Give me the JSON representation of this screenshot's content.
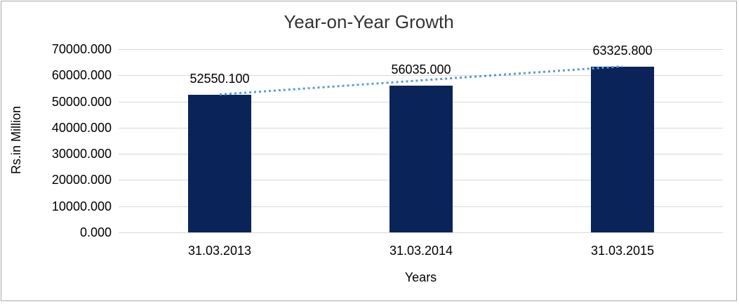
{
  "chart_data": {
    "type": "bar",
    "title": "Year-on-Year Growth",
    "xlabel": "Years",
    "ylabel": "Rs.in Million",
    "categories": [
      "31.03.2013",
      "31.03.2014",
      "31.03.2015"
    ],
    "series": [
      {
        "name": "Year-on-Year Growth",
        "values": [
          52550.1,
          56035.0,
          63325.8
        ],
        "data_labels": [
          "52550.100",
          "56035.000",
          "63325.800"
        ]
      }
    ],
    "ylim": [
      0,
      70000
    ],
    "ytick_step": 10000,
    "ytick_labels": [
      "0.000",
      "10000.000",
      "20000.000",
      "30000.000",
      "40000.000",
      "50000.000",
      "60000.000",
      "70000.000"
    ],
    "grid": true,
    "legend": "none",
    "trendline": {
      "type": "linear",
      "style": "dotted",
      "series": "Year-on-Year Growth"
    },
    "colors": {
      "bar": "#0a2459",
      "trendline": "#5b9bd5",
      "gridline": "#d9d9d9",
      "title_text": "#333333",
      "label_text": "#000000",
      "frame_border": "#a9a9a9",
      "background": "#ffffff"
    }
  }
}
